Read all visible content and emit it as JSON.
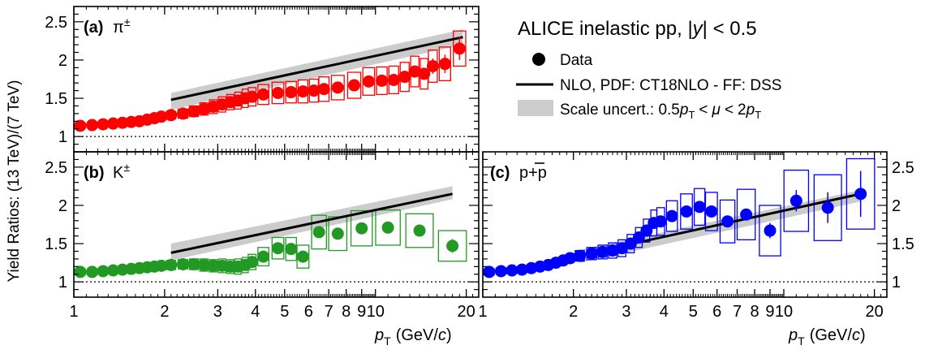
{
  "header": {
    "title": "ALICE inelastic pp, |y| < 0.5",
    "title_pre": "ALICE inelastic pp, |",
    "title_var": "y",
    "title_post": "| < 0.5"
  },
  "legend": {
    "data_label": "Data",
    "nlo_label": "NLO, PDF: CT18NLO - FF: DSS",
    "scale_label": "Scale uncert.: 0.5pT < μ < 2pT",
    "scale_pre": "Scale uncert.: 0.5",
    "scale_mu": "μ",
    "scale_lt": "<",
    "scale_two": "2",
    "pT_p": "p",
    "pT_T": "T",
    "placement": "top-right"
  },
  "axes": {
    "ylabel": "Yield Ratios: (13 TeV)/(7 TeV)",
    "xlabel": "pT (GeV/c)",
    "xlabel_p": "p",
    "xlabel_T": "T",
    "xlabel_unit_pre": "(GeV/",
    "xlabel_c": "c",
    "xlabel_unit_post": ")",
    "x_scale": "log",
    "xlim": [
      1,
      22
    ],
    "x_tick_labels": [
      "1",
      "2",
      "3",
      "4",
      "5",
      "6",
      "7",
      "8",
      "9",
      "10",
      "20"
    ],
    "ylim": [
      0.8,
      2.7
    ],
    "y_tick_labels": [
      "1",
      "1.5",
      "2",
      "2.5"
    ],
    "reference_line_y": 1.0
  },
  "colors": {
    "pion": "#ff0000",
    "kaon": "#229922",
    "proton": "#0000ff",
    "nlo": "#000000",
    "scale_band": "#cccccc"
  },
  "chart_data": [
    {
      "type": "scatter",
      "panel": "a",
      "panel_label": "(a)",
      "particle": "π±",
      "particle_base": "π",
      "particle_sup": "±",
      "color": "#ff0000",
      "x": [
        1.05,
        1.15,
        1.25,
        1.35,
        1.45,
        1.55,
        1.65,
        1.75,
        1.85,
        1.95,
        2.1,
        2.3,
        2.5,
        2.7,
        2.9,
        3.1,
        3.3,
        3.5,
        3.7,
        3.9,
        4.25,
        4.75,
        5.25,
        5.75,
        6.25,
        6.75,
        7.5,
        8.5,
        9.5,
        10.5,
        11.5,
        12.5,
        13.5,
        14.5,
        15.5,
        17,
        19
      ],
      "y": [
        1.14,
        1.15,
        1.16,
        1.17,
        1.18,
        1.19,
        1.2,
        1.22,
        1.24,
        1.26,
        1.28,
        1.3,
        1.33,
        1.36,
        1.39,
        1.42,
        1.45,
        1.47,
        1.5,
        1.52,
        1.55,
        1.57,
        1.58,
        1.59,
        1.6,
        1.62,
        1.64,
        1.67,
        1.72,
        1.73,
        1.74,
        1.78,
        1.85,
        1.82,
        1.92,
        1.95,
        2.15
      ],
      "sys": [
        0.03,
        0.03,
        0.03,
        0.03,
        0.03,
        0.04,
        0.04,
        0.04,
        0.04,
        0.04,
        0.05,
        0.06,
        0.07,
        0.08,
        0.09,
        0.1,
        0.1,
        0.11,
        0.12,
        0.12,
        0.13,
        0.14,
        0.14,
        0.15,
        0.15,
        0.16,
        0.16,
        0.17,
        0.18,
        0.18,
        0.18,
        0.19,
        0.2,
        0.2,
        0.21,
        0.22,
        0.23
      ],
      "stat": [
        0,
        0,
        0,
        0,
        0,
        0,
        0,
        0,
        0,
        0,
        0,
        0,
        0,
        0,
        0,
        0,
        0,
        0,
        0,
        0,
        0.02,
        0.02,
        0.02,
        0.02,
        0.02,
        0.02,
        0.03,
        0.03,
        0.03,
        0.04,
        0.05,
        0.06,
        0.07,
        0.07,
        0.1,
        0.12,
        0.15
      ],
      "nlo_x": [
        2.1,
        19.5
      ],
      "nlo_y": [
        1.48,
        2.3
      ],
      "band_lo": [
        1.35,
        2.2
      ],
      "band_hi": [
        1.57,
        2.4
      ]
    },
    {
      "type": "scatter",
      "panel": "b",
      "panel_label": "(b)",
      "particle": "K±",
      "particle_base": "K",
      "particle_sup": "±",
      "color": "#229922",
      "x": [
        1.05,
        1.15,
        1.25,
        1.35,
        1.45,
        1.55,
        1.65,
        1.75,
        1.85,
        1.95,
        2.1,
        2.3,
        2.5,
        2.7,
        2.9,
        3.1,
        3.3,
        3.5,
        3.7,
        3.9,
        4.25,
        4.75,
        5.25,
        5.75,
        6.5,
        7.5,
        9,
        11,
        14,
        18
      ],
      "y": [
        1.13,
        1.13,
        1.14,
        1.15,
        1.16,
        1.17,
        1.18,
        1.19,
        1.2,
        1.21,
        1.22,
        1.23,
        1.23,
        1.22,
        1.21,
        1.21,
        1.2,
        1.2,
        1.22,
        1.26,
        1.33,
        1.44,
        1.43,
        1.33,
        1.65,
        1.63,
        1.7,
        1.71,
        1.67,
        1.47
      ],
      "sys": [
        0.04,
        0.04,
        0.04,
        0.04,
        0.04,
        0.04,
        0.04,
        0.04,
        0.05,
        0.05,
        0.06,
        0.06,
        0.07,
        0.08,
        0.08,
        0.09,
        0.09,
        0.1,
        0.1,
        0.1,
        0.12,
        0.14,
        0.15,
        0.15,
        0.22,
        0.22,
        0.23,
        0.23,
        0.22,
        0.2
      ],
      "stat": [
        0,
        0,
        0,
        0,
        0,
        0,
        0,
        0,
        0,
        0,
        0,
        0,
        0,
        0,
        0,
        0,
        0,
        0,
        0,
        0,
        0.02,
        0.02,
        0.03,
        0.03,
        0.04,
        0.04,
        0.05,
        0.06,
        0.07,
        0.09
      ],
      "nlo_x": [
        2.1,
        18
      ],
      "nlo_y": [
        1.38,
        2.15
      ],
      "band_lo": [
        1.28,
        2.08
      ],
      "band_hi": [
        1.5,
        2.25
      ]
    },
    {
      "type": "scatter",
      "panel": "c",
      "panel_label": "(c)",
      "particle": "p+p̄",
      "particle_base": "p+p",
      "color": "#0000ff",
      "x": [
        1.05,
        1.15,
        1.25,
        1.35,
        1.45,
        1.55,
        1.65,
        1.75,
        1.85,
        1.95,
        2.1,
        2.3,
        2.5,
        2.7,
        2.9,
        3.1,
        3.3,
        3.5,
        3.7,
        3.9,
        4.25,
        4.75,
        5.25,
        5.75,
        6.5,
        7.5,
        9,
        11,
        14,
        18
      ],
      "y": [
        1.13,
        1.14,
        1.15,
        1.16,
        1.18,
        1.2,
        1.22,
        1.25,
        1.28,
        1.31,
        1.34,
        1.37,
        1.39,
        1.41,
        1.44,
        1.5,
        1.58,
        1.67,
        1.77,
        1.79,
        1.86,
        1.92,
        1.98,
        1.92,
        1.79,
        1.88,
        1.67,
        2.06,
        1.97,
        2.15
      ],
      "sys": [
        0.04,
        0.04,
        0.04,
        0.04,
        0.04,
        0.04,
        0.04,
        0.05,
        0.05,
        0.06,
        0.07,
        0.08,
        0.09,
        0.1,
        0.11,
        0.12,
        0.13,
        0.15,
        0.17,
        0.18,
        0.2,
        0.23,
        0.24,
        0.25,
        0.28,
        0.33,
        0.33,
        0.4,
        0.43,
        0.46
      ],
      "stat": [
        0,
        0,
        0,
        0,
        0,
        0,
        0,
        0,
        0,
        0,
        0,
        0,
        0,
        0,
        0,
        0,
        0,
        0,
        0,
        0,
        0.03,
        0.04,
        0.05,
        0.06,
        0.06,
        0.07,
        0.1,
        0.14,
        0.2,
        0.3
      ],
      "nlo_x": [
        2.1,
        18
      ],
      "nlo_y": [
        1.35,
        2.15
      ],
      "band_lo": [
        1.25,
        2.05
      ],
      "band_hi": [
        1.42,
        2.2
      ]
    }
  ]
}
